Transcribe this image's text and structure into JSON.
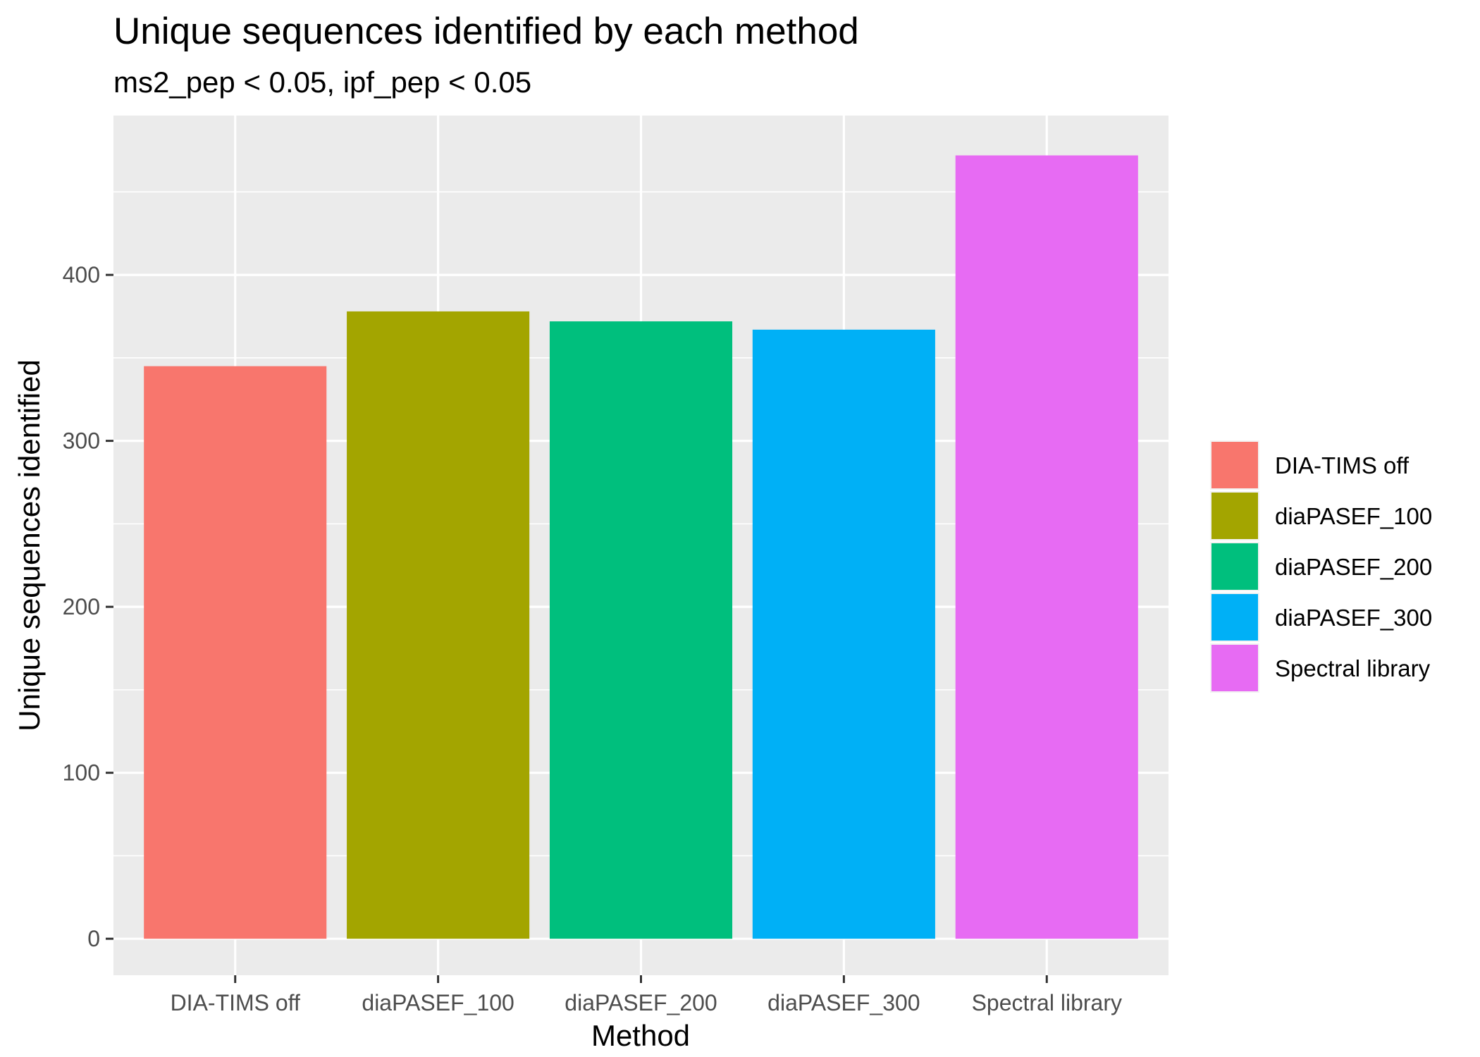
{
  "chart_data": {
    "type": "bar",
    "title": "Unique sequences identified by each method",
    "subtitle": "ms2_pep < 0.05, ipf_pep < 0.05",
    "xlabel": "Method",
    "ylabel": "Unique sequences identified",
    "categories": [
      "DIA-TIMS off",
      "diaPASEF_100",
      "diaPASEF_200",
      "diaPASEF_300",
      "Spectral library"
    ],
    "values": [
      345,
      378,
      372,
      367,
      472
    ],
    "colors": [
      "#F8766D",
      "#A3A500",
      "#00BF7D",
      "#00B0F6",
      "#E76BF3"
    ],
    "ylim": [
      -22,
      496
    ],
    "yticks": [
      0,
      100,
      200,
      300,
      400
    ],
    "grid": true,
    "legend": {
      "position": "right",
      "entries": [
        "DIA-TIMS off",
        "diaPASEF_100",
        "diaPASEF_200",
        "diaPASEF_300",
        "Spectral library"
      ]
    }
  }
}
